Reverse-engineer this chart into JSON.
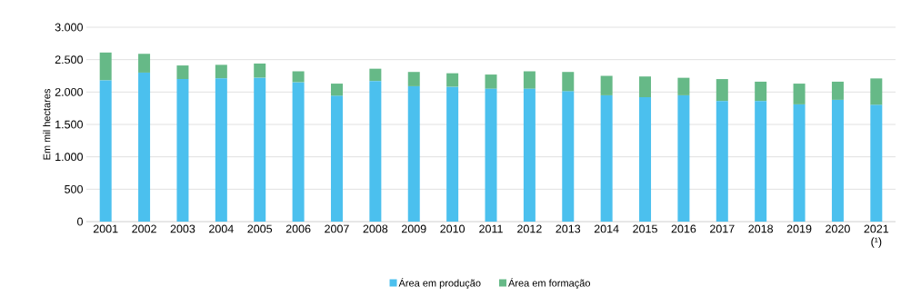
{
  "chart_data": {
    "type": "bar",
    "stacked": true,
    "ylabel": "Em mil hectares",
    "categories": [
      "2001",
      "2002",
      "2003",
      "2004",
      "2005",
      "2006",
      "2007",
      "2008",
      "2009",
      "2010",
      "2011",
      "2012",
      "2013",
      "2014",
      "2015",
      "2016",
      "2017",
      "2018",
      "2019",
      "2020",
      "2021 (¹)"
    ],
    "series": [
      {
        "name": "Área em produção",
        "color": "#4bc0ee",
        "values": [
          2180,
          2300,
          2200,
          2210,
          2220,
          2150,
          1940,
          2170,
          2090,
          2080,
          2050,
          2050,
          2010,
          1950,
          1920,
          1950,
          1860,
          1860,
          1810,
          1880,
          1800
        ]
      },
      {
        "name": "Área em formação",
        "color": "#66b987",
        "values": [
          430,
          290,
          210,
          210,
          220,
          170,
          190,
          190,
          220,
          210,
          220,
          270,
          300,
          300,
          320,
          270,
          340,
          300,
          320,
          280,
          410
        ]
      }
    ],
    "ylim": [
      0,
      3000
    ],
    "yticks": [
      {
        "value": 0,
        "label": "0"
      },
      {
        "value": 500,
        "label": "500"
      },
      {
        "value": 1000,
        "label": "1.000"
      },
      {
        "value": 1500,
        "label": "1.500"
      },
      {
        "value": 2000,
        "label": "2.000"
      },
      {
        "value": 2500,
        "label": "2.500"
      },
      {
        "value": 3000,
        "label": "3.000"
      }
    ],
    "grid": "y",
    "legend": "bottom"
  }
}
